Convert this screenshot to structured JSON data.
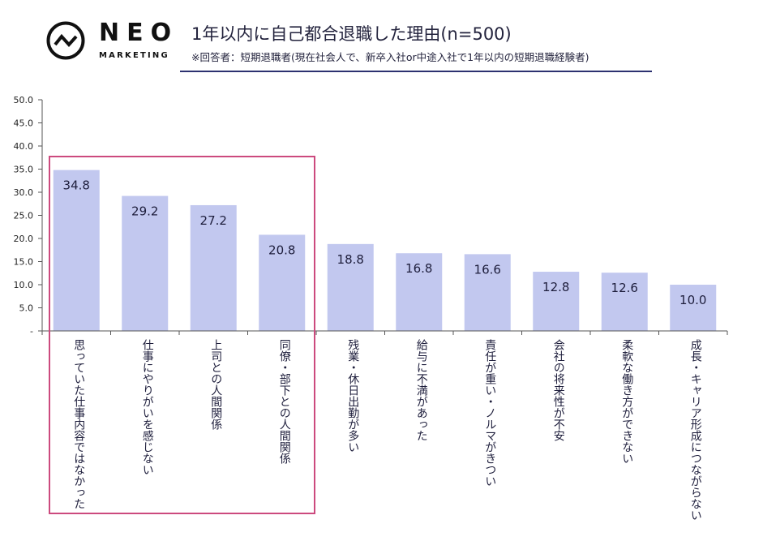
{
  "brand": {
    "name": "NEO",
    "sub": "MARKETING",
    "icon": "neo-wave-circle-icon"
  },
  "header": {
    "title": "1年以内に自己都合退職した理由(n=500)",
    "subtitle": "※回答者：短期退職者(現在社会人で、新卒入社or中途入社で1年以内の短期退職経験者)"
  },
  "colors": {
    "bar": "#c2c8ef",
    "highlight": "#cc4a7e",
    "rule": "#2c3170",
    "axis": "#555555"
  },
  "chart_data": {
    "type": "bar",
    "title": "1年以内に自己都合退職した理由(n=500)",
    "categories": [
      "思っていた仕事内容ではなかった",
      "仕事にやりがいを感じない",
      "上司との人間関係",
      "同僚・部下との人間関係",
      "残業・休日出勤が多い",
      "給与に不満があった",
      "責任が重い・ノルマがきつい",
      "会社の将来性が不安",
      "柔軟な働き方ができない",
      "成長・キャリア形成につながらない"
    ],
    "values": [
      34.8,
      29.2,
      27.2,
      20.8,
      18.8,
      16.8,
      16.6,
      12.8,
      12.6,
      10.0
    ],
    "value_labels": [
      "34.8",
      "29.2",
      "27.2",
      "20.8",
      "18.8",
      "16.8",
      "16.6",
      "12.8",
      "12.6",
      "10.0"
    ],
    "ylim": [
      0,
      50
    ],
    "yticks": [
      "-",
      "5.0",
      "10.0",
      "15.0",
      "20.0",
      "25.0",
      "30.0",
      "35.0",
      "40.0",
      "45.0",
      "50.0"
    ],
    "highlighted_categories": [
      0,
      1,
      2,
      3
    ],
    "grid": false,
    "legend": "none"
  }
}
